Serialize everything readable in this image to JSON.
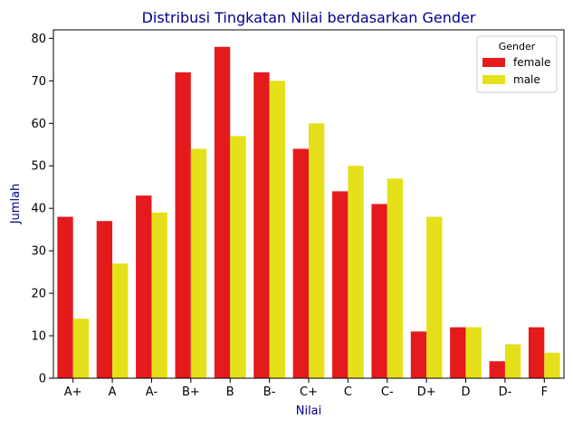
{
  "chart_data": {
    "type": "bar",
    "title": "Distribusi Tingkatan Nilai berdasarkan Gender",
    "xlabel": "Nilai",
    "ylabel": "Jumlah",
    "categories": [
      "A+",
      "A",
      "A-",
      "B+",
      "B",
      "B-",
      "C+",
      "C",
      "C-",
      "D+",
      "D",
      "D-",
      "F"
    ],
    "series": [
      {
        "name": "female",
        "color": "#e41a1c",
        "values": [
          38,
          37,
          43,
          72,
          78,
          72,
          54,
          44,
          41,
          11,
          12,
          4,
          12
        ]
      },
      {
        "name": "male",
        "color": "#e5e01a",
        "values": [
          14,
          27,
          39,
          54,
          57,
          70,
          60,
          50,
          47,
          38,
          12,
          8,
          6
        ]
      }
    ],
    "ylim": [
      0,
      82
    ],
    "yticks": [
      0,
      10,
      20,
      30,
      40,
      50,
      60,
      70,
      80
    ],
    "grid": false,
    "legend": {
      "title": "Gender",
      "placement": "top-right"
    },
    "title_color": "#00008b",
    "label_color": "#00008b"
  }
}
